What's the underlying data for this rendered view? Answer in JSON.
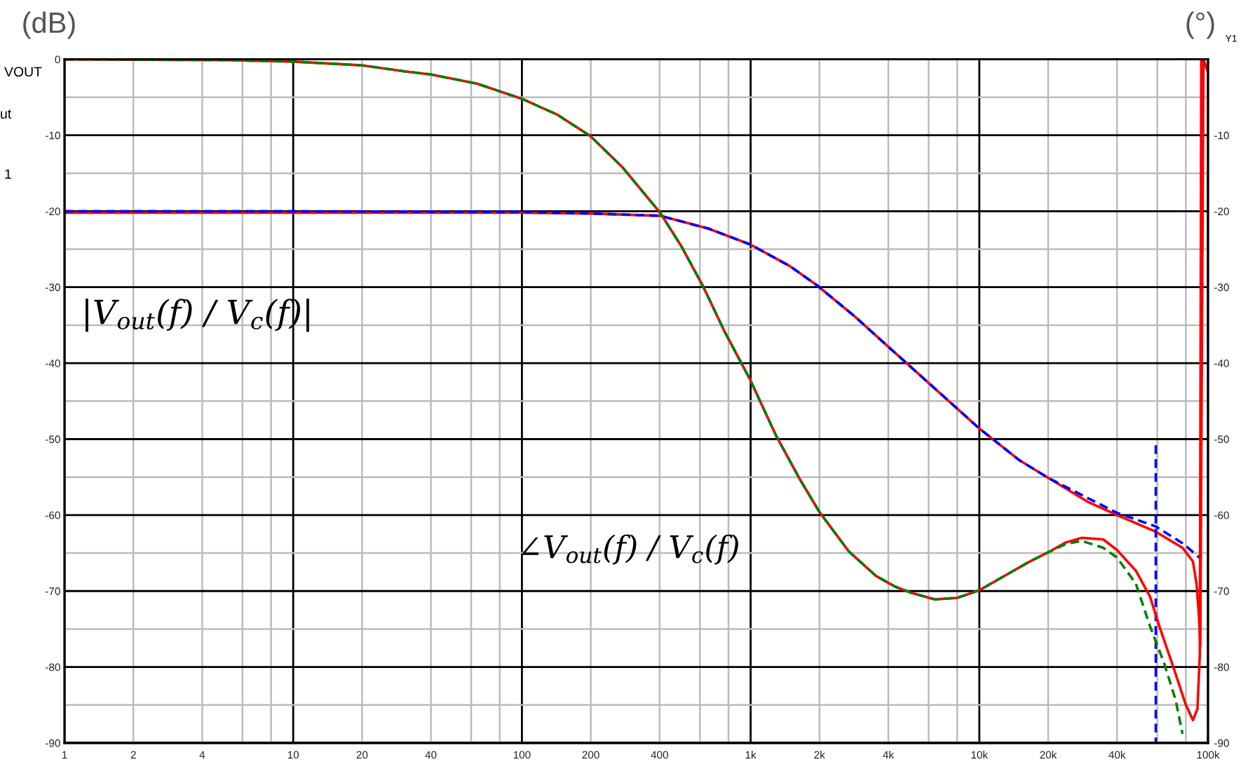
{
  "chart_data": {
    "type": "line",
    "ylabel": "(dB)",
    "y2label": "(°)",
    "annotations": [
      "VOUT",
      "ut",
      "1",
      "Y1",
      "|V$_{out}$(f) / V$_{c}$(f)|",
      "∠V$_{out}$(f) / V$_{c}$(f)"
    ],
    "log": "x",
    "grid": true,
    "xlim": [
      1,
      100000
    ],
    "xticks": [
      1,
      2,
      4,
      {
        "value": 6,
        "label": null
      },
      {
        "value": 8,
        "label": null
      },
      10,
      20,
      40,
      {
        "value": 60,
        "label": null
      },
      {
        "value": 80,
        "label": null
      },
      100,
      200,
      400,
      {
        "value": 600,
        "label": null
      },
      {
        "value": 800,
        "label": null
      },
      {
        "value": 1000,
        "label": "1k"
      },
      {
        "value": 2000,
        "label": "2k"
      },
      {
        "value": 4000,
        "label": "4k"
      },
      {
        "value": 6000,
        "label": null
      },
      {
        "value": 8000,
        "label": null
      },
      {
        "value": 10000,
        "label": "10k"
      },
      {
        "value": 20000,
        "label": "20k"
      },
      {
        "value": 40000,
        "label": "40k"
      },
      {
        "value": 60000,
        "label": null
      },
      {
        "value": 80000,
        "label": null
      },
      {
        "value": 100000,
        "label": "100k"
      }
    ],
    "ylim": [
      -90,
      0
    ],
    "yticks": [
      0,
      {
        "value": -5,
        "label": null
      },
      -10,
      {
        "value": -15,
        "label": null
      },
      -20,
      {
        "value": -25,
        "label": null
      },
      -30,
      {
        "value": -35,
        "label": null
      },
      -40,
      {
        "value": -45,
        "label": null
      },
      -50,
      {
        "value": -55,
        "label": null
      },
      -60,
      {
        "value": -65,
        "label": null
      },
      -70,
      {
        "value": -75,
        "label": null
      },
      -80,
      {
        "value": -85,
        "label": null
      },
      -90
    ],
    "y2lim": [
      -90,
      0
    ],
    "y2ticks": [
      -10,
      -20,
      -30,
      -40,
      -50,
      -60,
      -70,
      -80,
      -90
    ],
    "series": [
      {
        "color": "#ff0000",
        "line_style": "solid",
        "x": [
          1,
          10,
          100,
          200,
          402,
          656,
          1000,
          1480,
          1940,
          2840,
          4340,
          6000,
          10000,
          15000,
          20000,
          30000,
          40000,
          59100,
          77300,
          85900,
          89100,
          91300,
          92500,
          95500,
          100000,
          100000
        ],
        "values": [
          -20.2,
          -20.2,
          -20.2,
          -20.3,
          -20.6,
          -22.3,
          -24.4,
          -27.2,
          -29.7,
          -33.8,
          -38.8,
          -42.6,
          -48.6,
          -52.8,
          -55.1,
          -58.3,
          -60,
          -62.2,
          -64.3,
          -66.1,
          -69.1,
          -73.4,
          -77.3,
          0,
          -1.7,
          -37
        ]
      },
      {
        "color": "#0000ff",
        "line_style": "dashed",
        "x": [
          1,
          10,
          100,
          200,
          402,
          656,
          1000,
          1480,
          1940,
          2840,
          4340,
          6000,
          10000,
          15000,
          20000,
          30000,
          40000,
          59100,
          77300,
          93400
        ],
        "values": [
          -20,
          -20,
          -20.1,
          -20.3,
          -20.6,
          -22.3,
          -24.4,
          -27.2,
          -29.7,
          -33.8,
          -38.8,
          -42.6,
          -48.6,
          -52.8,
          -55.1,
          -57.8,
          -59.7,
          -61.5,
          -63.7,
          -65.8
        ]
      },
      {
        "color": "#0000ff",
        "line_style": "dashed",
        "x": [
          59100,
          59100
        ],
        "values": [
          -50.8,
          -90
        ]
      },
      {
        "axis": "y2",
        "color": "#ff0000",
        "line_style": "solid",
        "x": [
          1,
          5,
          10,
          20,
          31,
          40,
          63.5,
          100,
          143,
          199,
          275,
          402,
          500,
          620,
          771,
          996,
          1290,
          1650,
          2000,
          2690,
          3530,
          4270,
          5000,
          6400,
          8000,
          10000,
          13600,
          16400,
          20000,
          23900,
          28000,
          34800,
          40000,
          48300,
          55700,
          61200,
          70500,
          79800,
          85900,
          89900,
          92100,
          93400
        ],
        "values": [
          0,
          -0.1,
          -0.3,
          -0.8,
          -1.6,
          -2,
          -3.2,
          -5.2,
          -7.3,
          -10.1,
          -14.2,
          -20.2,
          -24.7,
          -29.9,
          -35.9,
          -42.2,
          -49.5,
          -55.4,
          -59.6,
          -64.8,
          -68,
          -69.4,
          -70.2,
          -71.1,
          -70.9,
          -69.9,
          -67.6,
          -66.2,
          -64.9,
          -63.6,
          -63,
          -63.2,
          -64.6,
          -67.3,
          -70.7,
          -74.6,
          -80,
          -84.9,
          -87,
          -85.5,
          -78.2,
          0
        ]
      },
      {
        "axis": "y2",
        "color": "#008000",
        "line_style": "dashed",
        "x": [
          1,
          5,
          10,
          20,
          31,
          40,
          63.5,
          100,
          143,
          199,
          275,
          402,
          500,
          620,
          771,
          996,
          1290,
          1650,
          2000,
          2690,
          3530,
          4270,
          5000,
          6400,
          8000,
          10000,
          13600,
          16400,
          20000,
          23900,
          28000,
          34800,
          40000,
          48300,
          55700,
          64100,
          72100,
          77300
        ],
        "values": [
          0,
          -0.1,
          -0.3,
          -0.8,
          -1.6,
          -2,
          -3.2,
          -5.2,
          -7.3,
          -10.1,
          -14.2,
          -20.2,
          -24.7,
          -29.9,
          -35.9,
          -42.2,
          -49.5,
          -55.4,
          -59.6,
          -64.8,
          -68,
          -69.4,
          -70.2,
          -71.1,
          -70.9,
          -69.9,
          -67.6,
          -66.2,
          -64.9,
          -63.8,
          -63.4,
          -64.3,
          -65.6,
          -69,
          -74.6,
          -79.4,
          -84.3,
          -88.8
        ]
      }
    ]
  }
}
